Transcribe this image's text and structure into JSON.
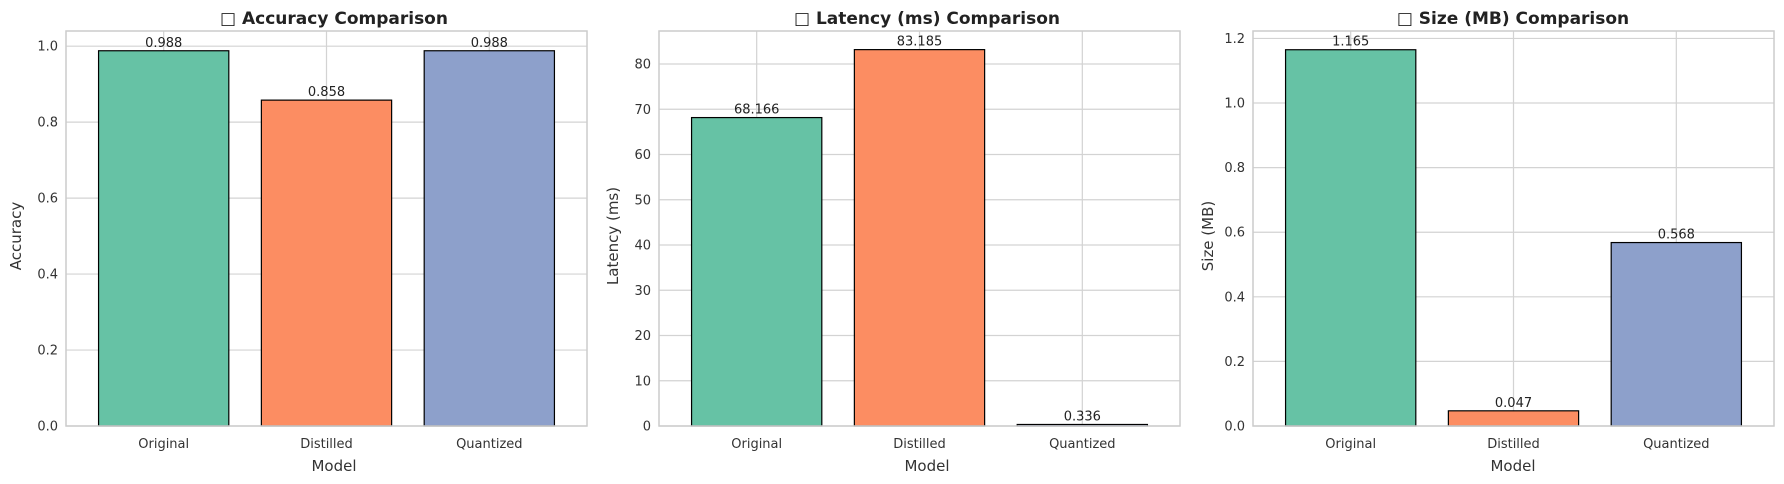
{
  "chart_data": [
    {
      "type": "bar",
      "title": "□ Accuracy Comparison",
      "xlabel": "Model",
      "ylabel": "Accuracy",
      "categories": [
        "Original",
        "Distilled",
        "Quantized"
      ],
      "values": [
        0.988,
        0.858,
        0.988
      ],
      "value_labels": [
        "0.988",
        "0.858",
        "0.988"
      ],
      "ylim": [
        0,
        1.04
      ],
      "yticks": [
        0.0,
        0.2,
        0.4,
        0.6,
        0.8,
        1.0
      ],
      "ytick_labels": [
        "0.0",
        "0.2",
        "0.4",
        "0.6",
        "0.8",
        "1.0"
      ],
      "grid": true
    },
    {
      "type": "bar",
      "title": "□ Latency (ms) Comparison",
      "xlabel": "Model",
      "ylabel": "Latency (ms)",
      "categories": [
        "Original",
        "Distilled",
        "Quantized"
      ],
      "values": [
        68.166,
        83.185,
        0.336
      ],
      "value_labels": [
        "68.166",
        "83.185",
        "0.336"
      ],
      "ylim": [
        0,
        87.3
      ],
      "yticks": [
        0,
        10,
        20,
        30,
        40,
        50,
        60,
        70,
        80
      ],
      "ytick_labels": [
        "0",
        "10",
        "20",
        "30",
        "40",
        "50",
        "60",
        "70",
        "80"
      ],
      "grid": true
    },
    {
      "type": "bar",
      "title": "□ Size (MB) Comparison",
      "xlabel": "Model",
      "ylabel": "Size (MB)",
      "categories": [
        "Original",
        "Distilled",
        "Quantized"
      ],
      "values": [
        1.165,
        0.047,
        0.568
      ],
      "value_labels": [
        "1.165",
        "0.047",
        "0.568"
      ],
      "ylim": [
        0,
        1.223
      ],
      "yticks": [
        0.0,
        0.2,
        0.4,
        0.6,
        0.8,
        1.0,
        1.2
      ],
      "ytick_labels": [
        "0.0",
        "0.2",
        "0.4",
        "0.6",
        "0.8",
        "1.0",
        "1.2"
      ],
      "grid": true
    }
  ],
  "colors": {
    "bars": [
      "#66c2a5",
      "#fc8d62",
      "#8da0cb"
    ],
    "bar_edge": "#000000",
    "grid": "#d3d3d3",
    "spine": "#cccccc"
  }
}
